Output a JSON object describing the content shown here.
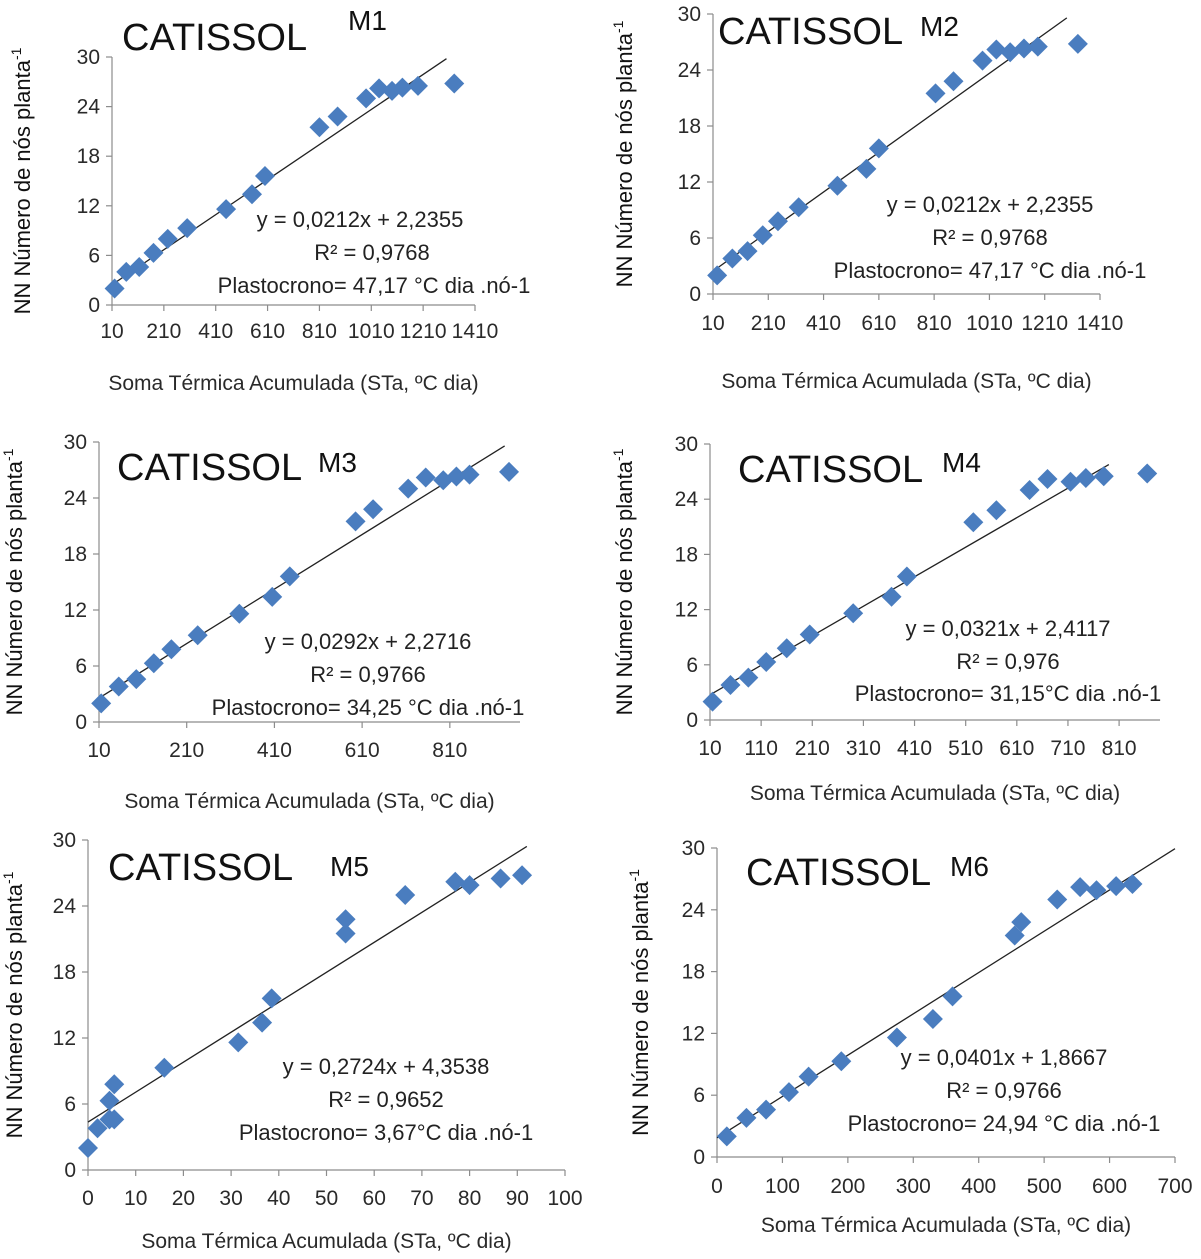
{
  "colors": {
    "point": "#4a7dbf",
    "trend": "#222222",
    "axis": "#8c8c8c"
  },
  "chart_data": [
    {
      "type": "scatter",
      "title": "CATISSOL",
      "model": "M1",
      "xlabel": "Soma Térmica Acumulada (STa, ºC dia)",
      "ylabel": "NN Número de nós planta",
      "ylabel_sup": "-1",
      "xticks": [
        "10",
        "210",
        "410",
        "610",
        "810",
        "1010",
        "1210",
        "1410"
      ],
      "xtick_values": [
        10,
        210,
        410,
        610,
        810,
        1010,
        1210,
        1410
      ],
      "xlim": [
        10,
        1410
      ],
      "yticks": [
        "0",
        "6",
        "12",
        "18",
        "24",
        "30"
      ],
      "ylim": [
        0,
        30
      ],
      "x": [
        20,
        65,
        115,
        170,
        225,
        300,
        450,
        550,
        600,
        810,
        880,
        990,
        1040,
        1090,
        1130,
        1190,
        1330
      ],
      "y": [
        2,
        4,
        4.6,
        6.3,
        8,
        9.3,
        11.6,
        13.4,
        15.6,
        21.5,
        22.8,
        25,
        26.2,
        25.9,
        26.3,
        26.5,
        26.8
      ],
      "trendline": {
        "slope": 0.0212,
        "intercept": 2.2355,
        "x_range": [
          10,
          1300
        ]
      },
      "equation": "y = 0,0212x + 2,2355",
      "r2": "R² = 0,9768",
      "plastocrono": "Plastocrono= 47,17 °C dia .nó-1"
    },
    {
      "type": "scatter",
      "title": "CATISSOL",
      "model": "M2",
      "xlabel": "Soma Térmica Acumulada (STa, ºC dia)",
      "ylabel": "NN Número de nós planta",
      "ylabel_sup": "-1",
      "xticks": [
        "10",
        "210",
        "410",
        "610",
        "810",
        "1010",
        "1210",
        "1410"
      ],
      "xtick_values": [
        10,
        210,
        410,
        610,
        810,
        1010,
        1210,
        1410
      ],
      "xlim": [
        10,
        1410
      ],
      "yticks": [
        "0",
        "6",
        "12",
        "18",
        "24",
        "30"
      ],
      "ylim": [
        0,
        30
      ],
      "x": [
        25,
        80,
        135,
        190,
        245,
        320,
        460,
        565,
        610,
        815,
        880,
        985,
        1035,
        1085,
        1135,
        1185,
        1330
      ],
      "y": [
        2,
        3.8,
        4.6,
        6.3,
        7.8,
        9.3,
        11.6,
        13.4,
        15.6,
        21.5,
        22.8,
        25,
        26.2,
        25.9,
        26.3,
        26.5,
        26.8
      ],
      "trendline": {
        "slope": 0.0212,
        "intercept": 2.2355,
        "x_range": [
          10,
          1290
        ]
      },
      "equation": "y = 0,0212x + 2,2355",
      "r2": "R² = 0,9768",
      "plastocrono": "Plastocrono= 47,17 °C dia .nó-1"
    },
    {
      "type": "scatter",
      "title": "CATISSOL",
      "model": "M3",
      "xlabel": "Soma Térmica Acumulada (STa, ºC dia)",
      "ylabel": "NN Número de nós planta",
      "ylabel_sup": "-1",
      "xticks": [
        "10",
        "210",
        "410",
        "610",
        "810"
      ],
      "xtick_values": [
        10,
        210,
        410,
        610,
        810
      ],
      "xlim": [
        10,
        970
      ],
      "yticks": [
        "0",
        "6",
        "12",
        "18",
        "24",
        "30"
      ],
      "ylim": [
        0,
        30
      ],
      "x": [
        15,
        55,
        95,
        135,
        175,
        235,
        330,
        405,
        445,
        595,
        635,
        715,
        755,
        795,
        825,
        855,
        945
      ],
      "y": [
        2,
        3.8,
        4.6,
        6.3,
        7.8,
        9.3,
        11.6,
        13.4,
        15.6,
        21.5,
        22.8,
        25,
        26.2,
        25.9,
        26.3,
        26.5,
        26.8
      ],
      "trendline": {
        "slope": 0.0292,
        "intercept": 2.2716,
        "x_range": [
          10,
          935
        ]
      },
      "equation": "y = 0,0292x + 2,2716",
      "r2": "R² = 0,9766",
      "plastocrono": "Plastocrono= 34,25 °C dia .nó-1"
    },
    {
      "type": "scatter",
      "title": "CATISSOL",
      "model": "M4",
      "xlabel": "Soma Térmica Acumulada (STa, ºC dia)",
      "ylabel": "NN Número de nós planta",
      "ylabel_sup": "-1",
      "xticks": [
        "10",
        "110",
        "210",
        "310",
        "410",
        "510",
        "610",
        "710",
        "810"
      ],
      "xtick_values": [
        10,
        110,
        210,
        310,
        410,
        510,
        610,
        710,
        810
      ],
      "xlim": [
        10,
        890
      ],
      "yticks": [
        "0",
        "6",
        "12",
        "18",
        "24",
        "30"
      ],
      "ylim": [
        0,
        30
      ],
      "x": [
        15,
        50,
        85,
        120,
        160,
        205,
        290,
        365,
        395,
        525,
        570,
        635,
        670,
        715,
        745,
        780,
        865
      ],
      "y": [
        2,
        3.8,
        4.6,
        6.3,
        7.8,
        9.3,
        11.6,
        13.4,
        15.6,
        21.5,
        22.8,
        25,
        26.2,
        25.9,
        26.3,
        26.5,
        26.8
      ],
      "trendline": {
        "slope": 0.0321,
        "intercept": 2.4117,
        "x_range": [
          10,
          790
        ]
      },
      "equation": "y = 0,0321x + 2,4117",
      "r2": "R² = 0,976",
      "plastocrono": "Plastocrono= 31,15°C dia .nó-1"
    },
    {
      "type": "scatter",
      "title": "CATISSOL",
      "model": "M5",
      "xlabel": "Soma Térmica Acumulada (STa, ºC dia)",
      "ylabel": "NN Número de nós planta",
      "ylabel_sup": "-1",
      "xticks": [
        "0",
        "10",
        "20",
        "30",
        "40",
        "50",
        "60",
        "70",
        "80",
        "90",
        "100"
      ],
      "xtick_values": [
        0,
        10,
        20,
        30,
        40,
        50,
        60,
        70,
        80,
        90,
        100
      ],
      "xlim": [
        0,
        100
      ],
      "yticks": [
        "0",
        "6",
        "12",
        "18",
        "24",
        "30"
      ],
      "ylim": [
        0,
        30
      ],
      "x": [
        0,
        2,
        4.5,
        4.5,
        5.5,
        5.5,
        16,
        31.5,
        36.5,
        38.5,
        54,
        54,
        66.5,
        77,
        80,
        86.5,
        91
      ],
      "y": [
        2,
        3.8,
        4.6,
        6.3,
        7.8,
        4.6,
        9.3,
        11.6,
        13.4,
        15.6,
        21.5,
        22.8,
        25,
        26.2,
        25.9,
        26.5,
        26.8
      ],
      "trendline": {
        "slope": 0.2724,
        "intercept": 4.3538,
        "x_range": [
          0,
          92
        ]
      },
      "equation": "y = 0,2724x + 4,3538",
      "r2": "R² = 0,9652",
      "plastocrono": "Plastocrono= 3,67°C dia .nó-1"
    },
    {
      "type": "scatter",
      "title": "CATISSOL",
      "model": "M6",
      "xlabel": "Soma Térmica Acumulada (STa, ºC dia)",
      "ylabel": "NN Número de nós planta",
      "ylabel_sup": "-1",
      "xticks": [
        "0",
        "100",
        "200",
        "300",
        "400",
        "500",
        "600",
        "700"
      ],
      "xtick_values": [
        0,
        100,
        200,
        300,
        400,
        500,
        600,
        700
      ],
      "xlim": [
        0,
        700
      ],
      "yticks": [
        "0",
        "6",
        "12",
        "18",
        "24",
        "30"
      ],
      "ylim": [
        0,
        30
      ],
      "x": [
        15,
        45,
        75,
        110,
        140,
        190,
        275,
        330,
        360,
        455,
        465,
        520,
        555,
        580,
        610,
        635
      ],
      "y": [
        2,
        3.8,
        4.6,
        6.3,
        7.8,
        9.3,
        11.6,
        13.4,
        15.6,
        21.5,
        22.8,
        25,
        26.2,
        25.9,
        26.3,
        26.5
      ],
      "trendline": {
        "slope": 0.0401,
        "intercept": 1.8667,
        "x_range": [
          0,
          700
        ]
      },
      "equation": "y = 0,0401x + 1,8667",
      "r2": "R² = 0,9766",
      "plastocrono": "Plastocrono= 24,94 °C dia .nó-1"
    }
  ]
}
